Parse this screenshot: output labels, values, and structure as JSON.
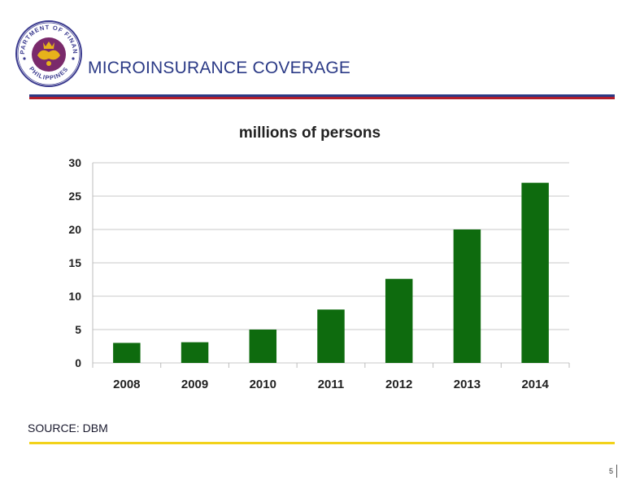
{
  "header": {
    "title": "MICROINSURANCE COVERAGE",
    "seal": {
      "name": "department-of-finance-seal",
      "text_top": "DEPARTMENT OF FINANCE",
      "text_bottom": "PHILIPPINES",
      "colors": {
        "ring": "#3b3b8f",
        "inner": "#7a2a6b",
        "emblem": "#e7b21b"
      }
    }
  },
  "colors": {
    "title": "#2b3a86",
    "rule_blue": "#2b3a86",
    "rule_red": "#b11e2b",
    "rule_gold": "#f2d21a",
    "bar": "#0e6b0e",
    "grid": "#c8c8c8"
  },
  "chart_data": {
    "type": "bar",
    "title": "millions of persons",
    "xlabel": "",
    "ylabel": "",
    "categories": [
      "2008",
      "2009",
      "2010",
      "2011",
      "2012",
      "2013",
      "2014"
    ],
    "values": [
      3,
      3.1,
      5,
      8,
      12.6,
      20,
      27
    ],
    "ylim": [
      0,
      30
    ],
    "yticks": [
      "0",
      "5",
      "10",
      "15",
      "20",
      "25",
      "30"
    ],
    "grid": true,
    "legend": "none"
  },
  "footer": {
    "source": "SOURCE: DBM",
    "page_number": "5"
  }
}
